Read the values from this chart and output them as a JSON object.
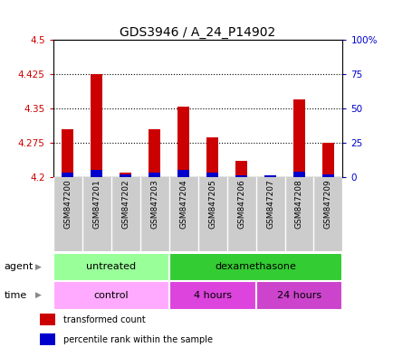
{
  "title": "GDS3946 / A_24_P14902",
  "samples": [
    "GSM847200",
    "GSM847201",
    "GSM847202",
    "GSM847203",
    "GSM847204",
    "GSM847205",
    "GSM847206",
    "GSM847207",
    "GSM847208",
    "GSM847209"
  ],
  "transformed_count": [
    4.305,
    4.425,
    4.21,
    4.305,
    4.353,
    4.287,
    4.235,
    4.2,
    4.37,
    4.275
  ],
  "percentile_rank": [
    3,
    5,
    2,
    3,
    5,
    3,
    1,
    1,
    4,
    2
  ],
  "ylim_left": [
    4.2,
    4.5
  ],
  "ylim_right": [
    0,
    100
  ],
  "yticks_left": [
    4.2,
    4.275,
    4.35,
    4.425,
    4.5
  ],
  "yticks_right": [
    0,
    25,
    50,
    75,
    100
  ],
  "ytick_labels_left": [
    "4.2",
    "4.275",
    "4.35",
    "4.425",
    "4.5"
  ],
  "ytick_labels_right": [
    "0",
    "25",
    "50",
    "75",
    "100%"
  ],
  "bar_bottom": 4.2,
  "red_color": "#cc0000",
  "blue_color": "#0000cc",
  "agent_untreated_color": "#99ff99",
  "agent_dexa_color": "#33cc33",
  "time_control_color": "#ffaaff",
  "time_4h_color": "#dd44dd",
  "time_24h_color": "#cc44cc",
  "agent_untreated_label": "untreated",
  "agent_dexa_label": "dexamethasone",
  "time_control_label": "control",
  "time_4h_label": "4 hours",
  "time_24h_label": "24 hours",
  "tick_color_left": "#cc0000",
  "tick_color_right": "#0000cc",
  "grid_color": "#000000",
  "background_color": "#ffffff",
  "bar_bg_color": "#cccccc",
  "title_fontsize": 10,
  "axis_fontsize": 7.5,
  "label_fontsize": 8,
  "legend_fontsize": 7
}
